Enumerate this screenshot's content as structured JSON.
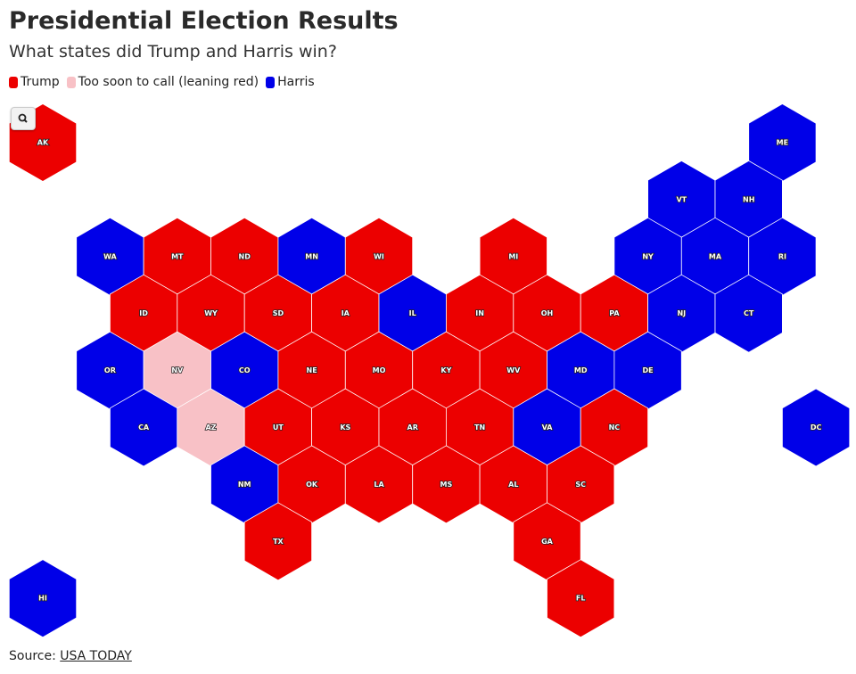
{
  "header": {
    "title": "Presidential Election Results",
    "subtitle": "What states did Trump and Harris win?"
  },
  "legend": [
    {
      "label": "Trump",
      "color": "#ec0000"
    },
    {
      "label": "Too soon to call (leaning red)",
      "color": "#f8c1c6"
    },
    {
      "label": "Harris",
      "color": "#0000e8"
    }
  ],
  "states": [
    {
      "label": "AK",
      "result": "Trump"
    },
    {
      "label": "ME",
      "result": "Harris"
    },
    {
      "label": "VT",
      "result": "Harris"
    },
    {
      "label": "NH",
      "result": "Harris"
    },
    {
      "label": "WA",
      "result": "Harris"
    },
    {
      "label": "MT",
      "result": "Trump"
    },
    {
      "label": "ND",
      "result": "Trump"
    },
    {
      "label": "MN",
      "result": "Harris"
    },
    {
      "label": "WI",
      "result": "Trump"
    },
    {
      "label": "MI",
      "result": "Trump"
    },
    {
      "label": "NY",
      "result": "Harris"
    },
    {
      "label": "MA",
      "result": "Harris"
    },
    {
      "label": "RI",
      "result": "Harris"
    },
    {
      "label": "ID",
      "result": "Trump"
    },
    {
      "label": "WY",
      "result": "Trump"
    },
    {
      "label": "SD",
      "result": "Trump"
    },
    {
      "label": "IA",
      "result": "Trump"
    },
    {
      "label": "IL",
      "result": "Harris"
    },
    {
      "label": "IN",
      "result": "Trump"
    },
    {
      "label": "OH",
      "result": "Trump"
    },
    {
      "label": "PA",
      "result": "Trump"
    },
    {
      "label": "NJ",
      "result": "Harris"
    },
    {
      "label": "CT",
      "result": "Harris"
    },
    {
      "label": "OR",
      "result": "Harris"
    },
    {
      "label": "NV",
      "result": "Too soon to call (leaning red)"
    },
    {
      "label": "CO",
      "result": "Harris"
    },
    {
      "label": "NE",
      "result": "Trump"
    },
    {
      "label": "MO",
      "result": "Trump"
    },
    {
      "label": "KY",
      "result": "Trump"
    },
    {
      "label": "WV",
      "result": "Trump"
    },
    {
      "label": "MD",
      "result": "Harris"
    },
    {
      "label": "DE",
      "result": "Harris"
    },
    {
      "label": "CA",
      "result": "Harris"
    },
    {
      "label": "AZ",
      "result": "Too soon to call (leaning red)"
    },
    {
      "label": "UT",
      "result": "Trump"
    },
    {
      "label": "KS",
      "result": "Trump"
    },
    {
      "label": "AR",
      "result": "Trump"
    },
    {
      "label": "TN",
      "result": "Trump"
    },
    {
      "label": "VA",
      "result": "Harris"
    },
    {
      "label": "NC",
      "result": "Trump"
    },
    {
      "label": "DC",
      "result": "Harris"
    },
    {
      "label": "NM",
      "result": "Harris"
    },
    {
      "label": "OK",
      "result": "Trump"
    },
    {
      "label": "LA",
      "result": "Trump"
    },
    {
      "label": "MS",
      "result": "Trump"
    },
    {
      "label": "AL",
      "result": "Trump"
    },
    {
      "label": "SC",
      "result": "Trump"
    },
    {
      "label": "TX",
      "result": "Trump"
    },
    {
      "label": "GA",
      "result": "Trump"
    },
    {
      "label": "HI",
      "result": "Harris"
    },
    {
      "label": "FL",
      "result": "Trump"
    }
  ],
  "source": {
    "prefix": "Source:",
    "link": "USA TODAY"
  }
}
